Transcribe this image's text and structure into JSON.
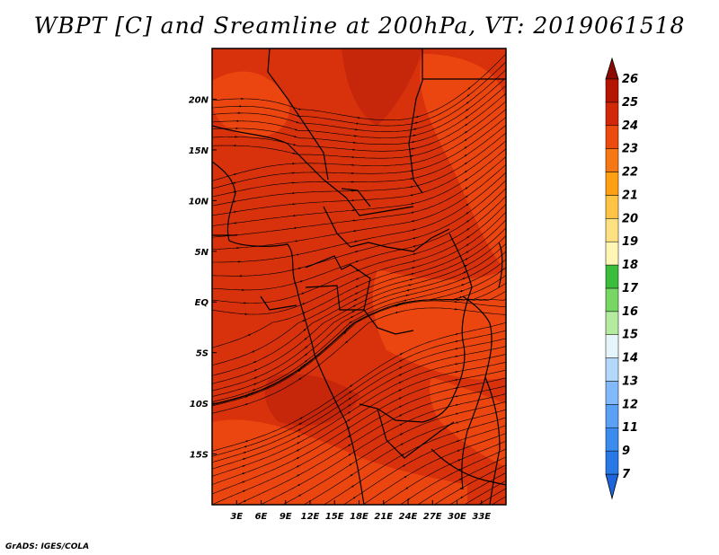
{
  "title": "WBPT [C] and Sreamline at 200hPa, VT: 2019061518",
  "credit": "GrADS: IGES/COLA",
  "map": {
    "lon_range": [
      0,
      36
    ],
    "lat_range": [
      -20,
      25
    ],
    "x_ticks": [
      {
        "lon": 3,
        "label": "3E"
      },
      {
        "lon": 6,
        "label": "6E"
      },
      {
        "lon": 9,
        "label": "9E"
      },
      {
        "lon": 12,
        "label": "12E"
      },
      {
        "lon": 15,
        "label": "15E"
      },
      {
        "lon": 18,
        "label": "18E"
      },
      {
        "lon": 21,
        "label": "21E"
      },
      {
        "lon": 24,
        "label": "24E"
      },
      {
        "lon": 27,
        "label": "27E"
      },
      {
        "lon": 30,
        "label": "30E"
      },
      {
        "lon": 33,
        "label": "33E"
      }
    ],
    "y_ticks": [
      {
        "lat": 20,
        "label": "20N"
      },
      {
        "lat": 15,
        "label": "15N"
      },
      {
        "lat": 10,
        "label": "10N"
      },
      {
        "lat": 5,
        "label": "5N"
      },
      {
        "lat": 0,
        "label": "EQ"
      },
      {
        "lat": -5,
        "label": "5S"
      },
      {
        "lat": -10,
        "label": "10S"
      },
      {
        "lat": -15,
        "label": "15S"
      }
    ],
    "colors": {
      "base": "#d8320c",
      "warm": "#f04a12",
      "cool": "#c3240a",
      "line": "#000000"
    }
  },
  "colorbar": {
    "levels": [
      "7",
      "9",
      "11",
      "12",
      "13",
      "14",
      "15",
      "16",
      "17",
      "18",
      "19",
      "20",
      "21",
      "22",
      "23",
      "24",
      "25",
      "26"
    ],
    "colors": [
      "#1e64dc",
      "#2878e6",
      "#3c8cf0",
      "#5aa0f5",
      "#82b9fa",
      "#b4d7fc",
      "#e6f5fa",
      "#b4eba0",
      "#78d764",
      "#3cbe3c",
      "#fff5b4",
      "#ffe182",
      "#ffc346",
      "#ffa014",
      "#f57814",
      "#eb4b0f",
      "#d2280a",
      "#b41400",
      "#8c0a00"
    ]
  }
}
